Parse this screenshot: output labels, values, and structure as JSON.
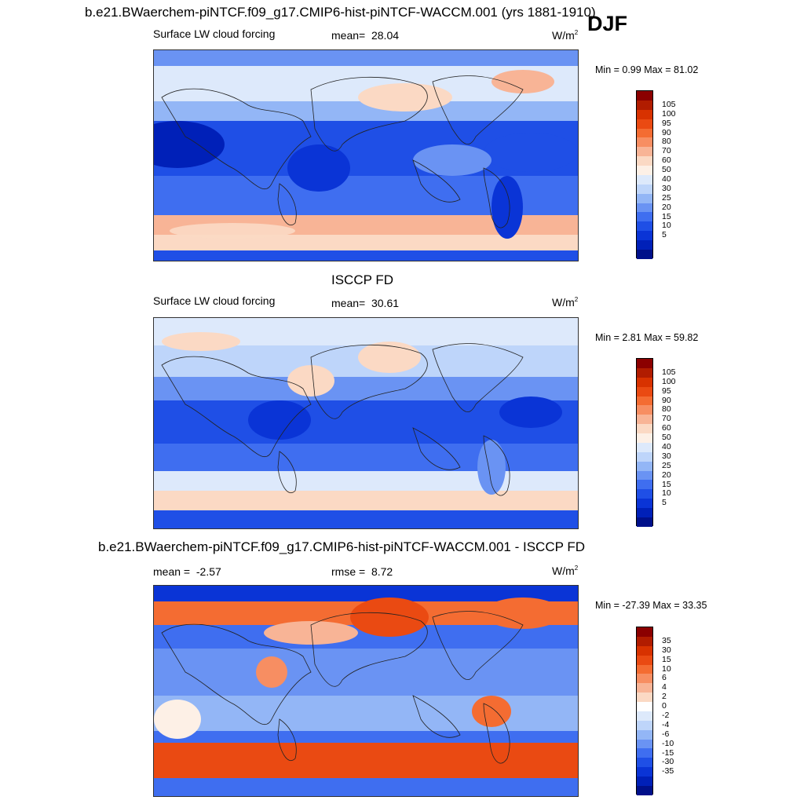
{
  "header": {
    "title": "b.e21.BWaerchem-piNTCF.f09_g17.CMIP6-hist-piNTCF-WACCM.001 (yrs 1881-1910)",
    "season": "DJF"
  },
  "chart_data": [
    {
      "type": "heatmap",
      "panel": "model",
      "field_label": "Surface LW cloud forcing",
      "mean_label": "mean=",
      "mean_value": "28.04",
      "units": "W/m",
      "units_sup": "2",
      "minmax": "Min =   0.99 Max =  81.02",
      "min": 0.99,
      "max": 81.02,
      "mean": 28.04,
      "colorbar_levels": [
        "105",
        "100",
        "95",
        "90",
        "80",
        "70",
        "60",
        "50",
        "40",
        "30",
        "25",
        "20",
        "15",
        "10",
        "5"
      ],
      "colors": [
        "#8b0000",
        "#b11c00",
        "#d83200",
        "#ea4a12",
        "#f46c32",
        "#f78e62",
        "#f8b496",
        "#fbd9c4",
        "#fdf0e6",
        "#dde9fb",
        "#bed5fa",
        "#93b6f6",
        "#6a93f3",
        "#3f6ef0",
        "#1f4fe6",
        "#0a34d6",
        "#0020b8",
        "#00108a"
      ]
    },
    {
      "type": "heatmap",
      "panel": "obs",
      "center_title": "ISCCP FD",
      "field_label": "Surface LW cloud forcing",
      "mean_label": "mean=",
      "mean_value": "30.61",
      "units": "W/m",
      "units_sup": "2",
      "minmax": "Min =   2.81 Max =  59.82",
      "min": 2.81,
      "max": 59.82,
      "mean": 30.61,
      "colorbar_levels": [
        "105",
        "100",
        "95",
        "90",
        "80",
        "70",
        "60",
        "50",
        "40",
        "30",
        "25",
        "20",
        "15",
        "10",
        "5"
      ]
    },
    {
      "type": "heatmap",
      "panel": "diff",
      "center_title": "b.e21.BWaerchem-piNTCF.f09_g17.CMIP6-hist-piNTCF-WACCM.001 - ISCCP FD",
      "mean_label": "mean =",
      "mean_value": "-2.57",
      "rmse_label": "rmse =",
      "rmse_value": "8.72",
      "units": "W/m",
      "units_sup": "2",
      "minmax": "Min = -27.39 Max =  33.35",
      "min": -27.39,
      "max": 33.35,
      "mean": -2.57,
      "rmse": 8.72,
      "colorbar_levels": [
        "35",
        "30",
        "15",
        "10",
        "6",
        "4",
        "2",
        "0",
        "-2",
        "-4",
        "-6",
        "-10",
        "-15",
        "-30",
        "-35"
      ]
    }
  ]
}
